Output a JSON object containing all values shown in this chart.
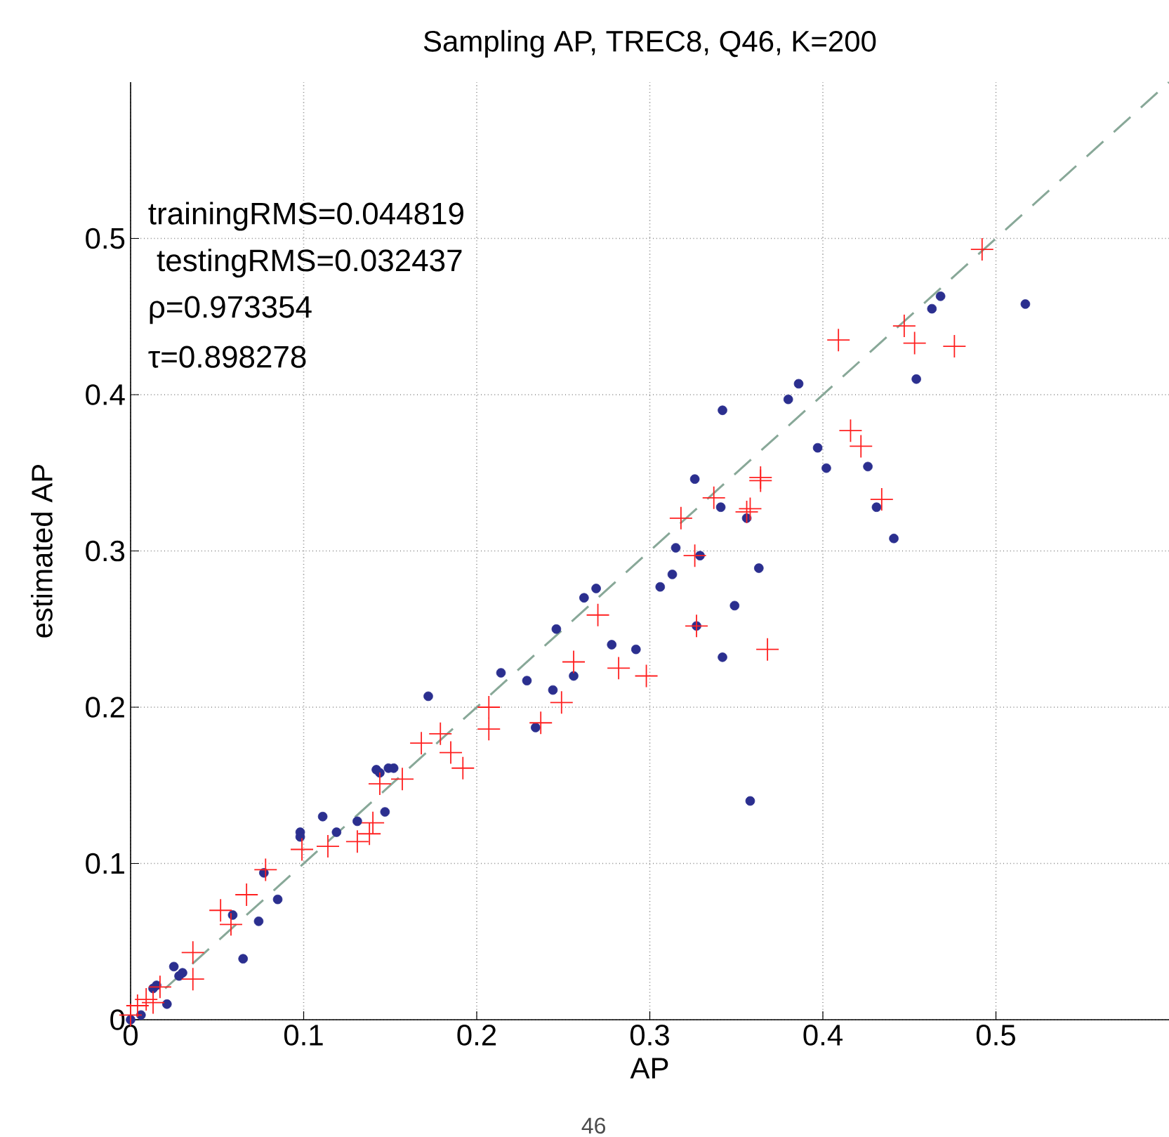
{
  "chart_data": {
    "type": "scatter",
    "title": "Sampling AP, TREC8, Q46, K=200",
    "xlabel": "AP",
    "ylabel": "estimated AP",
    "xlim": [
      0,
      0.6
    ],
    "ylim": [
      0,
      0.6
    ],
    "xticks": [
      0,
      0.1,
      0.2,
      0.3,
      0.4,
      0.5
    ],
    "yticks": [
      0,
      0.1,
      0.2,
      0.3,
      0.4,
      0.5
    ],
    "grid": true,
    "annotations": [
      "trainingRMS=0.044819",
      " testingRMS=0.032437",
      "ρ=0.973354",
      "τ=0.898278",
      "46"
    ],
    "series": [
      {
        "type": "scatter",
        "marker": "circle",
        "color": "#2b2f8f",
        "x": [
          0,
          0.006,
          0.013,
          0.015,
          0.021,
          0.025,
          0.028,
          0.03,
          0.059,
          0.065,
          0.074,
          0.077,
          0.085,
          0.098,
          0.098,
          0.111,
          0.119,
          0.131,
          0.142,
          0.144,
          0.149,
          0.152,
          0.147,
          0.172,
          0.214,
          0.229,
          0.234,
          0.244,
          0.246,
          0.256,
          0.262,
          0.269,
          0.278,
          0.292,
          0.306,
          0.313,
          0.315,
          0.326,
          0.327,
          0.329,
          0.341,
          0.342,
          0.342,
          0.349,
          0.356,
          0.358,
          0.363,
          0.38,
          0.386,
          0.397,
          0.402,
          0.426,
          0.431,
          0.441,
          0.454,
          0.463,
          0.468,
          0.517
        ],
        "values": [
          0,
          0.003,
          0.02,
          0.022,
          0.01,
          0.034,
          0.028,
          0.03,
          0.067,
          0.039,
          0.063,
          0.094,
          0.077,
          0.12,
          0.117,
          0.13,
          0.12,
          0.127,
          0.16,
          0.158,
          0.161,
          0.161,
          0.133,
          0.207,
          0.222,
          0.217,
          0.187,
          0.211,
          0.25,
          0.22,
          0.27,
          0.276,
          0.24,
          0.237,
          0.277,
          0.285,
          0.302,
          0.346,
          0.252,
          0.297,
          0.328,
          0.232,
          0.39,
          0.265,
          0.321,
          0.14,
          0.289,
          0.397,
          0.407,
          0.366,
          0.353,
          0.354,
          0.328,
          0.308,
          0.41,
          0.455,
          0.463,
          0.458
        ]
      },
      {
        "type": "scatter",
        "marker": "cross",
        "color": "#ff2020",
        "x": [
          0,
          0.004,
          0.009,
          0.013,
          0.017,
          0.036,
          0.036,
          0.052,
          0.067,
          0.058,
          0.078,
          0.099,
          0.114,
          0.131,
          0.138,
          0.14,
          0.144,
          0.157,
          0.168,
          0.179,
          0.192,
          0.185,
          0.207,
          0.207,
          0.237,
          0.249,
          0.256,
          0.27,
          0.282,
          0.298,
          0.318,
          0.326,
          0.327,
          0.337,
          0.356,
          0.358,
          0.364,
          0.364,
          0.368,
          0.409,
          0.416,
          0.422,
          0.434,
          0.447,
          0.453,
          0.476,
          0.492
        ],
        "values": [
          0.003,
          0.009,
          0.013,
          0.011,
          0.021,
          0.043,
          0.026,
          0.07,
          0.08,
          0.061,
          0.096,
          0.109,
          0.111,
          0.114,
          0.119,
          0.126,
          0.151,
          0.154,
          0.177,
          0.183,
          0.161,
          0.171,
          0.186,
          0.2,
          0.19,
          0.203,
          0.229,
          0.259,
          0.225,
          0.22,
          0.321,
          0.297,
          0.252,
          0.334,
          0.325,
          0.327,
          0.345,
          0.347,
          0.237,
          0.435,
          0.377,
          0.367,
          0.333,
          0.444,
          0.433,
          0.431,
          0.493
        ]
      },
      {
        "type": "line",
        "marker": "none",
        "line_style": "dashed",
        "color": "#88a898",
        "x": [
          0.02,
          0.6
        ],
        "values": [
          0.02,
          0.6
        ]
      }
    ]
  }
}
